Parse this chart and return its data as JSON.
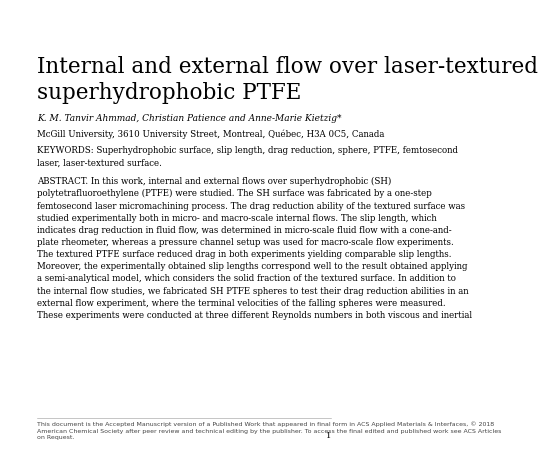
{
  "title_line1": "Internal and external flow over laser-textured",
  "title_line2": "superhydrophobic PTFE",
  "authors": "K. M. Tanvir Ahmmad, Christian Patience and Anne-Marie Kietzig*",
  "affiliation": "McGill University, 3610 University Street, Montreal, Québec, H3A 0C5, Canada",
  "keywords_label": "KEYWORDS:",
  "keywords_text": " Superhydrophobic surface, slip length, drag reduction, sphere, PTFE, femtosecond\nlaser, laser-textured surface.",
  "abstract_label": "ABSTRACT.",
  "abstract_text": " In this work, internal and external flows over superhydrophobic (SH)\npolytetrafluoroethylene (PTFE) were studied. The SH surface was fabricated by a one-step\nfemtosecond laser micromachining process. The drag reduction ability of the textured surface was\nstudied experimentally both in micro- and macro-scale internal flows. The slip length, which\nindicates drag reduction in fluid flow, was determined in micro-scale fluid flow with a cone-and-\nplate rheometer, whereas a pressure channel setup was used for macro-scale flow experiments.\nThe textured PTFE surface reduced drag in both experiments yielding comparable slip lengths.\nMoreover, the experimentally obtained slip lengths correspond well to the result obtained applying\na semi-analytical model, which considers the solid fraction of the textured surface. In addition to\nthe internal flow studies, we fabricated SH PTFE spheres to test their drag reduction abilities in an\nexternal flow experiment, where the terminal velocities of the falling spheres were measured.\nThese experiments were conducted at three different Reynolds numbers in both viscous and inertial",
  "footnote": "This document is the Accepted Manuscript version of a Published Work that appeared in final form in ACS Applied Materials & Interfaces, © 2018\nAmerican Chemical Society after peer review and technical editing by the publisher. To access the final edited and published work see ACS Articles\non Request.",
  "page_number": "1",
  "background_color": "#ffffff",
  "text_color": "#000000",
  "title_fontsize": 15.5,
  "body_fontsize": 6.2,
  "author_fontsize": 6.5,
  "keywords_fontsize": 6.2,
  "footnote_fontsize": 4.5,
  "page_num_fontsize": 6.0
}
